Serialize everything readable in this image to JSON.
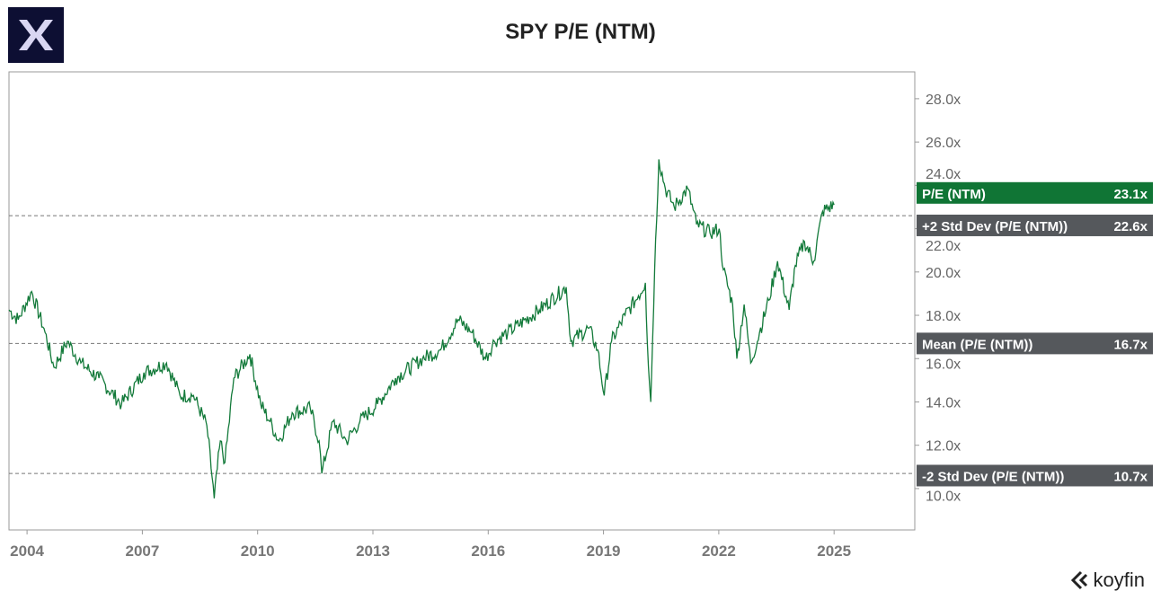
{
  "title": "SPY P/E (NTM)",
  "brand": "koyfin",
  "chart_data": {
    "type": "line",
    "title": "SPY P/E (NTM)",
    "xlabel": "",
    "ylabel": "",
    "xlim": [
      2003.53,
      2027.1
    ],
    "ylim": [
      8.09,
      29.24
    ],
    "grid": false,
    "x_ticks": [
      2004,
      2007,
      2010,
      2013,
      2016,
      2019,
      2022,
      2025
    ],
    "x_tick_labels": [
      "2004",
      "2007",
      "2010",
      "2013",
      "2016",
      "2019",
      "2022",
      "2025"
    ],
    "y_ticks": [
      10,
      12,
      14,
      16,
      18,
      20,
      22,
      24,
      26,
      28
    ],
    "y_tick_labels": [
      "10.0x",
      "12.0x",
      "14.0x",
      "16.0x",
      "18.0x",
      "20.0x",
      "22.0x",
      "24.0x",
      "26.0x",
      "28.0x"
    ],
    "colors": {
      "series": "#137a3a",
      "label_series": "#107535",
      "label_ref": "#55585c",
      "ref_line": "#777777"
    },
    "series": [
      {
        "name": "P/E (NTM)",
        "x": [
          2003.53,
          2003.77,
          2004.12,
          2004.47,
          2004.7,
          2005.05,
          2005.4,
          2005.87,
          2006.46,
          2007.04,
          2007.63,
          2007.98,
          2008.33,
          2008.68,
          2008.87,
          2009.03,
          2009.15,
          2009.38,
          2009.8,
          2010.08,
          2010.32,
          2010.55,
          2010.9,
          2011.37,
          2011.6,
          2011.67,
          2011.96,
          2012.31,
          2012.66,
          2013.12,
          2013.59,
          2014.29,
          2014.76,
          2015.22,
          2015.58,
          2015.93,
          2016.16,
          2016.51,
          2017.33,
          2018.03,
          2018.15,
          2018.62,
          2018.85,
          2019.02,
          2019.21,
          2019.56,
          2019.91,
          2020.09,
          2020.14,
          2020.23,
          2020.33,
          2020.44,
          2020.61,
          2020.84,
          2021.19,
          2021.42,
          2021.77,
          2022.01,
          2022.12,
          2022.36,
          2022.47,
          2022.66,
          2022.83,
          2023.06,
          2023.3,
          2023.53,
          2023.83,
          2023.99,
          2024.23,
          2024.47,
          2024.7,
          2025.0
        ],
        "y": [
          18.25,
          17.8,
          19.1,
          17.2,
          15.6,
          16.8,
          15.8,
          15.1,
          13.9,
          15.35,
          15.8,
          14.3,
          14.3,
          12.9,
          9.55,
          12.2,
          11.2,
          15.1,
          16.2,
          13.9,
          13.1,
          12.2,
          13.5,
          13.7,
          12.2,
          10.7,
          13.1,
          12.2,
          13.1,
          13.9,
          15.1,
          16.0,
          16.4,
          17.8,
          17.2,
          16.0,
          16.8,
          17.2,
          18.25,
          19.3,
          16.8,
          17.4,
          16.4,
          14.3,
          16.8,
          18.0,
          18.9,
          19.5,
          16.8,
          14.0,
          20.1,
          25.2,
          23.85,
          23.0,
          23.85,
          22.2,
          21.8,
          22.0,
          20.1,
          18.5,
          16.0,
          18.5,
          15.8,
          17.2,
          18.7,
          20.5,
          18.25,
          20.3,
          21.4,
          20.5,
          22.8,
          23.1
        ]
      }
    ],
    "reference_lines": [
      {
        "name": "+2 Std Dev (P/E (NTM))",
        "value": 22.6,
        "label": "22.6x"
      },
      {
        "name": "Mean (P/E (NTM))",
        "value": 16.7,
        "label": "16.7x"
      },
      {
        "name": "-2 Std Dev (P/E (NTM))",
        "value": 10.7,
        "label": "10.7x"
      }
    ],
    "last_value": {
      "name": "P/E (NTM)",
      "value": 23.1,
      "label": "23.1x"
    }
  }
}
